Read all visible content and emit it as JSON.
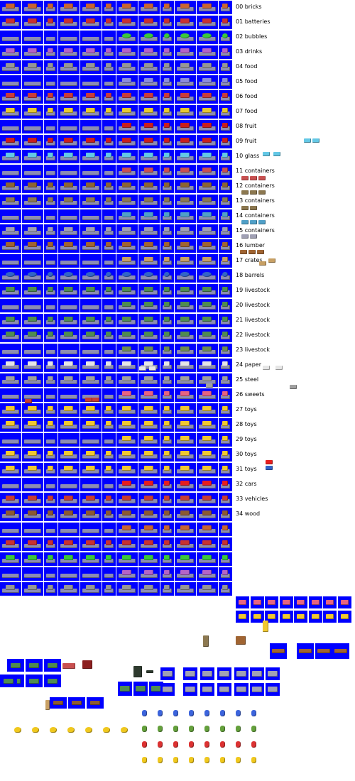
{
  "sheet": {
    "background": "#ffffff",
    "tile_background": "#0000ff",
    "tile_divider": "#000080",
    "deck_grey": "#8c8cb4"
  },
  "labels": [
    "00 bricks",
    "01 batteries",
    "02 bubbles",
    "03 drinks",
    "04 food",
    "05 food",
    "06 food",
    "07 food",
    "08 fruit",
    "09 fruit",
    "10 glass",
    "11 containers",
    "12 containers",
    "13 containers",
    "14 containers",
    "15 containers",
    "16 lumber",
    "17 crates",
    "18 barrels",
    "19 livestock",
    "20 livestock",
    "21 livestock",
    "22 livestock",
    "23 livestock",
    "24 paper",
    "25 steel",
    "26 sweets",
    "27 toys",
    "28 toys",
    "29 toys",
    "30 toys",
    "31 toys",
    "32 cars",
    "33 vehicles",
    "34 wood"
  ],
  "cargo_colors": [
    "#c86432",
    "#c83232",
    "#3cc83c",
    "#b464c8",
    "#969696",
    "#8c8cdc",
    "#c83c3c",
    "#e6c832",
    "#c81e1e",
    "#c81e1e",
    "#64c8e6",
    "#c85050",
    "#8c6432",
    "#8c7850",
    "#50a0c8",
    "#a0a0b4",
    "#a06432",
    "#c8a064",
    "#3264c8",
    "#508c50",
    "#508c50",
    "#508c50",
    "#508c50",
    "#6e8c50",
    "#e6e6e6",
    "#a0a0a0",
    "#e66482",
    "#f0c832",
    "#f0c832",
    "#f0c832",
    "#f0c832",
    "#f0c832",
    "#e61e1e",
    "#c83c32",
    "#8c5a32"
  ],
  "barrel_colors": [
    "#3c64dc",
    "#64a03c",
    "#dc3232",
    "#f0c81e"
  ]
}
